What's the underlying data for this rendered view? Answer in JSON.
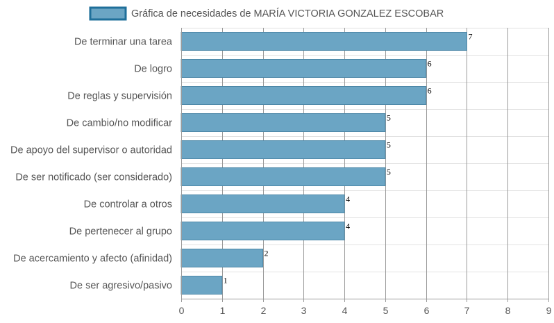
{
  "chart_data": {
    "type": "bar",
    "orientation": "horizontal",
    "legend": {
      "label": "Gráfica de necesidades de MARÍA VICTORIA GONZALEZ ESCOBAR",
      "position": "top-center"
    },
    "categories": [
      "De terminar una tarea",
      "De logro",
      "De reglas y supervisión",
      "De cambio/no modificar",
      "De apoyo del supervisor o autoridad",
      "De ser notificado (ser considerado)",
      "De controlar a otros",
      "De pertenecer al grupo",
      "De acercamiento y afecto (afinidad)",
      "De ser agresivo/pasivo"
    ],
    "series": [
      {
        "name": "Gráfica de necesidades de MARÍA VICTORIA GONZALEZ ESCOBAR",
        "values": [
          7,
          6,
          6,
          5,
          5,
          5,
          4,
          4,
          2,
          1
        ]
      }
    ],
    "xlim": [
      0,
      9
    ],
    "x_ticks": [
      "0",
      "1",
      "2",
      "3",
      "4",
      "5",
      "6",
      "7",
      "8",
      "9"
    ],
    "grid": true,
    "data_labels": true,
    "colors": {
      "bar_fill": "#6ba5c4",
      "bar_stroke": "#4d88a8",
      "legend_fill": "#6ba5c4",
      "legend_stroke": "#1f6f9a",
      "grid_line": "#9a9a9a",
      "row_line": "#e2e2e2"
    }
  }
}
